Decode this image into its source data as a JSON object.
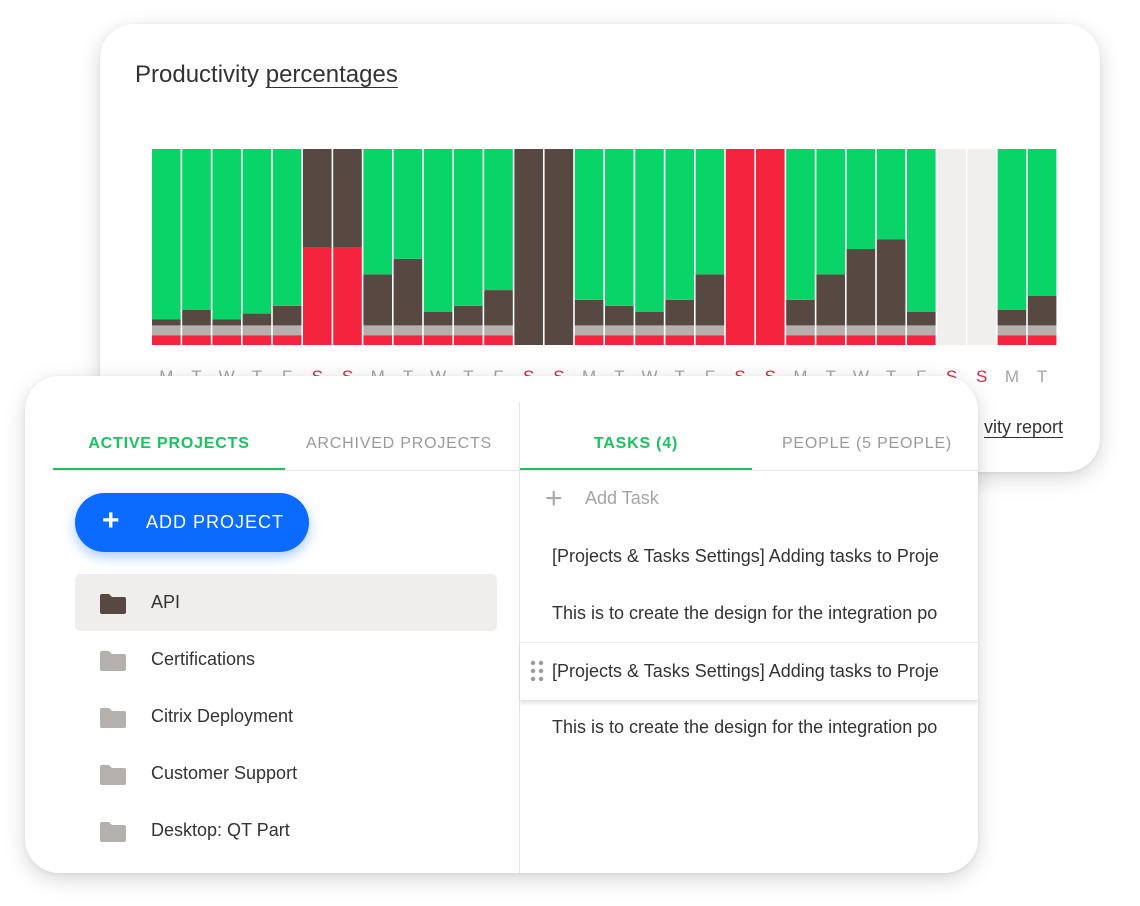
{
  "productivity": {
    "title_prefix": "Productivity ",
    "title_link": "percentages",
    "report_link": "vity report"
  },
  "chart_data": {
    "type": "bar",
    "stacked": true,
    "title": "Productivity percentages",
    "xlabel": "",
    "ylabel": "",
    "ylim": [
      0,
      100
    ],
    "categories": [
      "M",
      "T",
      "W",
      "T",
      "F",
      "S",
      "S",
      "M",
      "T",
      "W",
      "T",
      "F",
      "S",
      "S",
      "M",
      "T",
      "W",
      "T",
      "F",
      "S",
      "S",
      "M",
      "T",
      "W",
      "T",
      "F",
      "S",
      "S",
      "M",
      "T"
    ],
    "weekend_color": "#e0243e",
    "weekday_label_color": "#a5a5a5",
    "series": [
      {
        "color": "#f5243e",
        "values": [
          5,
          5,
          5,
          5,
          5,
          50,
          50,
          5,
          5,
          5,
          5,
          5,
          0,
          0,
          5,
          5,
          5,
          5,
          5,
          100,
          100,
          5,
          5,
          5,
          5,
          5,
          0,
          0,
          5,
          5
        ]
      },
      {
        "color": "#b3b0ae",
        "values": [
          5,
          5,
          5,
          5,
          5,
          0,
          0,
          5,
          5,
          5,
          5,
          5,
          0,
          0,
          5,
          5,
          5,
          5,
          5,
          0,
          0,
          5,
          5,
          5,
          5,
          5,
          0,
          0,
          5,
          5
        ]
      },
      {
        "color": "#574842",
        "values": [
          3,
          8,
          3,
          6,
          10,
          50,
          50,
          26,
          34,
          7,
          10,
          18,
          100,
          100,
          13,
          10,
          7,
          13,
          26,
          0,
          0,
          13,
          26,
          39,
          44,
          7,
          0,
          0,
          8,
          15
        ]
      },
      {
        "color": "#09d468",
        "values": [
          87,
          82,
          87,
          84,
          80,
          0,
          0,
          64,
          56,
          83,
          80,
          72,
          0,
          0,
          77,
          80,
          83,
          77,
          64,
          0,
          0,
          77,
          64,
          51,
          46,
          83,
          0,
          0,
          82,
          75
        ]
      },
      {
        "color": "#f0efee",
        "values": [
          0,
          0,
          0,
          0,
          0,
          0,
          0,
          0,
          0,
          0,
          0,
          0,
          0,
          0,
          0,
          0,
          0,
          0,
          0,
          0,
          0,
          0,
          0,
          0,
          0,
          0,
          100,
          100,
          0,
          0
        ]
      }
    ]
  },
  "projects": {
    "tabs": [
      "ACTIVE PROJECTS",
      "ARCHIVED PROJECTS"
    ],
    "add_label": "ADD PROJECT",
    "items": [
      {
        "name": "API"
      },
      {
        "name": "Certifications"
      },
      {
        "name": "Citrix Deployment"
      },
      {
        "name": "Customer Support"
      },
      {
        "name": "Desktop: QT Part"
      }
    ]
  },
  "tasks": {
    "tabs": [
      "TASKS (4)",
      "PEOPLE (5 PEOPLE)"
    ],
    "add_placeholder": "Add Task",
    "items": [
      {
        "text": "[Projects & Tasks Settings] Adding tasks to Proje"
      },
      {
        "text": "This is to create the design for the integration po"
      },
      {
        "text": "[Projects & Tasks Settings] Adding tasks to Proje"
      },
      {
        "text": "This is to create the design for the integration po"
      }
    ]
  },
  "colors": {
    "accent": "#17c45f",
    "primary_button": "#0b6bff",
    "folder_selected": "#574842",
    "folder": "#b3b0ae"
  }
}
